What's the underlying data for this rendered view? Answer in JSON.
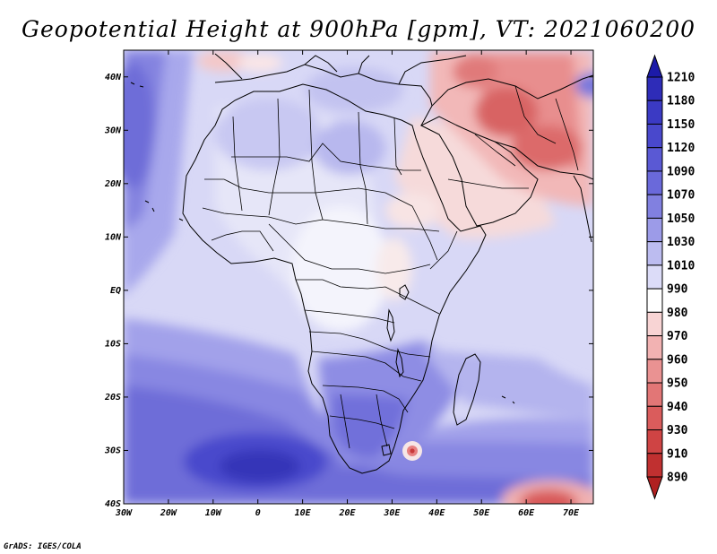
{
  "title": "Geopotential Height at 900hPa [gpm], VT: 2021060200",
  "footer": "GrADS: IGES/COLA",
  "map": {
    "variable": "Geopotential Height",
    "level": "900hPa",
    "units": "gpm",
    "valid_time": "2021060200",
    "lon_range": [
      -30,
      75
    ],
    "lat_range": [
      -40,
      45
    ],
    "lon_ticks": [
      {
        "v": -30,
        "label": "30W"
      },
      {
        "v": -20,
        "label": "20W"
      },
      {
        "v": -10,
        "label": "10W"
      },
      {
        "v": 0,
        "label": "0"
      },
      {
        "v": 10,
        "label": "10E"
      },
      {
        "v": 20,
        "label": "20E"
      },
      {
        "v": 30,
        "label": "30E"
      },
      {
        "v": 40,
        "label": "40E"
      },
      {
        "v": 50,
        "label": "50E"
      },
      {
        "v": 60,
        "label": "60E"
      },
      {
        "v": 70,
        "label": "70E"
      }
    ],
    "lat_ticks": [
      {
        "v": 40,
        "label": "40N"
      },
      {
        "v": 30,
        "label": "30N"
      },
      {
        "v": 20,
        "label": "20N"
      },
      {
        "v": 10,
        "label": "10N"
      },
      {
        "v": 0,
        "label": "EQ"
      },
      {
        "v": -10,
        "label": "10S"
      },
      {
        "v": -20,
        "label": "20S"
      },
      {
        "v": -30,
        "label": "30S"
      },
      {
        "v": -40,
        "label": "40S"
      }
    ]
  },
  "colorbar": {
    "levels": [
      "1210",
      "1180",
      "1150",
      "1120",
      "1090",
      "1070",
      "1050",
      "1030",
      "1010",
      "990",
      "980",
      "970",
      "960",
      "950",
      "940",
      "930",
      "910",
      "890"
    ],
    "colors": [
      "#1c1aa8",
      "#2e2cb8",
      "#3b3ac4",
      "#4948cc",
      "#5a59d4",
      "#6a69da",
      "#8180e0",
      "#9c9be8",
      "#bcbcf0",
      "#dcdcf8",
      "#ffffff",
      "#f8d4d4",
      "#f2b2b2",
      "#ea9292",
      "#e27676",
      "#da5c5c",
      "#cf4444",
      "#c03030",
      "#b02020"
    ]
  }
}
